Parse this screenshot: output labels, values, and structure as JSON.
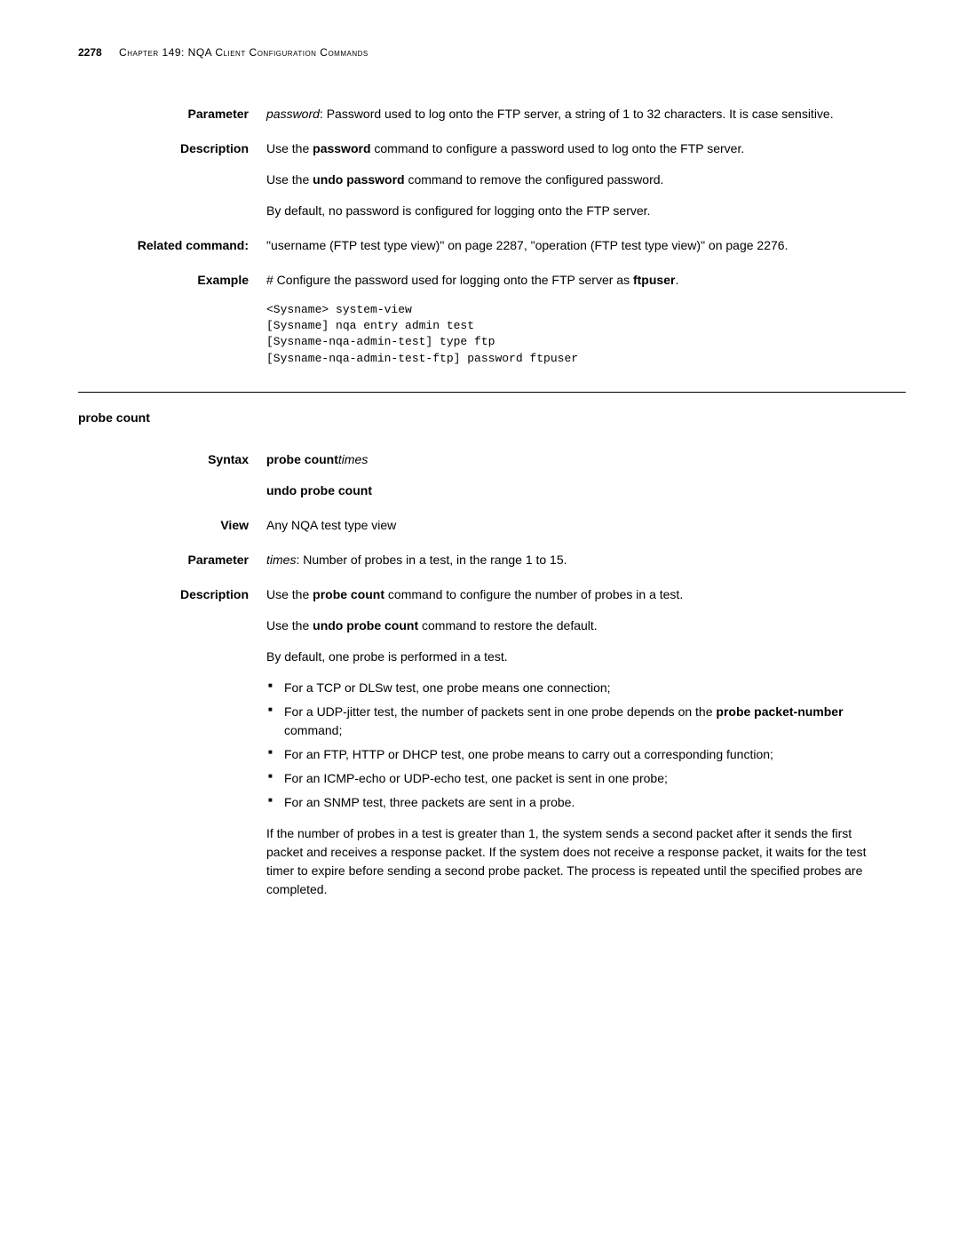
{
  "header": {
    "page_number": "2278",
    "chapter": "Chapter 149: NQA Client Configuration Commands"
  },
  "section1": {
    "parameter_label": "Parameter",
    "parameter_text_1a": "password",
    "parameter_text_1b": ": Password used to log onto the FTP server, a string of 1 to 32 characters. It is case sensitive.",
    "description_label": "Description",
    "desc_p1a": "Use the ",
    "desc_p1b": "password",
    "desc_p1c": " command to configure a password used to log onto the FTP server.",
    "desc_p2a": "Use the ",
    "desc_p2b": "undo password",
    "desc_p2c": " command to remove the configured password.",
    "desc_p3": "By default, no password is configured for logging onto the FTP server.",
    "related_label": "Related command:",
    "related_text": "\"username (FTP test type view)\" on page 2287, \"operation (FTP test type view)\" on page 2276.",
    "example_label": "Example",
    "example_text_a": "# Configure the password used for logging onto the FTP server as ",
    "example_text_b": "ftpuser",
    "example_text_c": ".",
    "code": "<Sysname> system-view\n[Sysname] nqa entry admin test\n[Sysname-nqa-admin-test] type ftp\n[Sysname-nqa-admin-test-ftp] password ftpuser"
  },
  "section2": {
    "title": "probe count",
    "syntax_label": "Syntax",
    "syntax_p1a": "probe count",
    "syntax_p1b": "times",
    "syntax_p2": "undo probe count",
    "view_label": "View",
    "view_text": "Any NQA test type view",
    "parameter_label": "Parameter",
    "param_text_a": "times",
    "param_text_b": ": Number of probes in a test, in the range 1 to 15.",
    "description_label": "Description",
    "desc_p1a": "Use the ",
    "desc_p1b": "probe count",
    "desc_p1c": " command to configure the number of probes in a test.",
    "desc_p2a": "Use the ",
    "desc_p2b": "undo probe count",
    "desc_p2c": " command to restore the default.",
    "desc_p3": "By default, one probe is performed in a test.",
    "bullet1": "For a TCP or DLSw test, one probe means one connection;",
    "bullet2a": "For a UDP-jitter test, the number of packets sent in one probe depends on the ",
    "bullet2b": "probe packet-number",
    "bullet2c": " command;",
    "bullet3": "For an FTP, HTTP or DHCP test, one probe means to carry out a corresponding function;",
    "bullet4": "For an ICMP-echo or UDP-echo test, one packet is sent in one probe;",
    "bullet5": "For an SNMP test, three packets are sent in a probe.",
    "final_para": "If the number of probes in a test is greater than 1, the system sends a second packet after it sends the first packet and receives a response packet. If the system does not receive a response packet, it waits for the test timer to expire before sending a second probe packet. The process is repeated until the specified probes are completed."
  }
}
